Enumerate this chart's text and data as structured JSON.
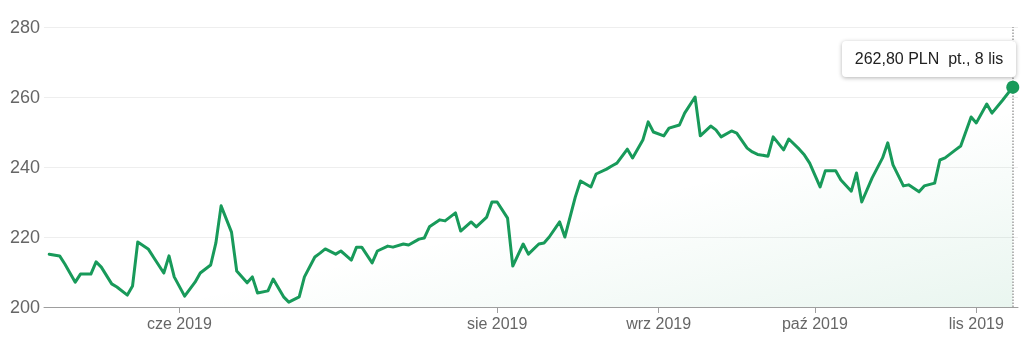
{
  "chart_data": {
    "type": "area",
    "x": [
      "2019-05-07",
      "2019-05-09",
      "2019-05-10",
      "2019-05-12",
      "2019-05-13",
      "2019-05-15",
      "2019-05-16",
      "2019-05-17",
      "2019-05-19",
      "2019-05-20",
      "2019-05-22",
      "2019-05-23",
      "2019-05-24",
      "2019-05-26",
      "2019-05-27",
      "2019-05-29",
      "2019-05-30",
      "2019-05-31",
      "2019-06-02",
      "2019-06-04",
      "2019-06-05",
      "2019-06-07",
      "2019-06-08",
      "2019-06-09",
      "2019-06-11",
      "2019-06-12",
      "2019-06-14",
      "2019-06-15",
      "2019-06-16",
      "2019-06-18",
      "2019-06-19",
      "2019-06-21",
      "2019-06-22",
      "2019-06-24",
      "2019-06-25",
      "2019-06-27",
      "2019-06-28",
      "2019-06-29",
      "2019-07-01",
      "2019-07-02",
      "2019-07-04",
      "2019-07-05",
      "2019-07-06",
      "2019-07-08",
      "2019-07-09",
      "2019-07-11",
      "2019-07-12",
      "2019-07-14",
      "2019-07-15",
      "2019-07-17",
      "2019-07-18",
      "2019-07-19",
      "2019-07-21",
      "2019-07-22",
      "2019-07-24",
      "2019-07-25",
      "2019-07-27",
      "2019-07-28",
      "2019-07-30",
      "2019-07-31",
      "2019-08-01",
      "2019-08-03",
      "2019-08-04",
      "2019-08-06",
      "2019-08-07",
      "2019-08-09",
      "2019-08-10",
      "2019-08-11",
      "2019-08-13",
      "2019-08-14",
      "2019-08-16",
      "2019-08-17",
      "2019-08-19",
      "2019-08-20",
      "2019-08-22",
      "2019-08-23",
      "2019-08-24",
      "2019-08-26",
      "2019-08-27",
      "2019-08-29",
      "2019-08-30",
      "2019-08-31",
      "2019-09-02",
      "2019-09-03",
      "2019-09-05",
      "2019-09-06",
      "2019-09-08",
      "2019-09-09",
      "2019-09-11",
      "2019-09-12",
      "2019-09-13",
      "2019-09-15",
      "2019-09-16",
      "2019-09-18",
      "2019-09-19",
      "2019-09-20",
      "2019-09-22",
      "2019-09-23",
      "2019-09-25",
      "2019-09-26",
      "2019-09-28",
      "2019-09-29",
      "2019-09-30",
      "2019-10-02",
      "2019-10-03",
      "2019-10-05",
      "2019-10-06",
      "2019-10-08",
      "2019-10-09",
      "2019-10-10",
      "2019-10-12",
      "2019-10-14",
      "2019-10-15",
      "2019-10-16",
      "2019-10-18",
      "2019-10-19",
      "2019-10-21",
      "2019-10-22",
      "2019-10-24",
      "2019-10-25",
      "2019-10-26",
      "2019-10-28",
      "2019-10-29",
      "2019-10-31",
      "2019-11-01",
      "2019-11-03",
      "2019-11-04",
      "2019-11-06",
      "2019-11-08"
    ],
    "series": [
      {
        "color": "#189a5a",
        "values": [
          215.1,
          214.6,
          212.3,
          207.1,
          209.4,
          209.4,
          212.9,
          211.4,
          206.6,
          205.7,
          203.4,
          206,
          218.6,
          216.6,
          214.3,
          209.7,
          214.6,
          208.6,
          203.1,
          207.1,
          209.7,
          212,
          218.3,
          228.9,
          221.4,
          210.3,
          206.9,
          208.6,
          204,
          204.6,
          208,
          202.9,
          201.4,
          202.9,
          208.6,
          214.3,
          215.4,
          216.6,
          215.1,
          216,
          213.4,
          217.1,
          217.1,
          212.6,
          216,
          217.4,
          217.1,
          218,
          217.7,
          219.4,
          219.7,
          222.9,
          224.9,
          224.6,
          226.9,
          221.7,
          224.3,
          222.9,
          225.7,
          230,
          230,
          225.4,
          211.7,
          218,
          215.1,
          218,
          218.3,
          220,
          224.3,
          220,
          231.4,
          236,
          234.3,
          238,
          239.4,
          240.3,
          241.1,
          245.1,
          242.6,
          247.8,
          252.9,
          250,
          248.9,
          251.1,
          252,
          255.4,
          260,
          248.9,
          251.7,
          250.6,
          248.6,
          250.3,
          249.7,
          245.4,
          244.3,
          243.6,
          243.1,
          248.6,
          244.9,
          248,
          245.1,
          243.4,
          241.1,
          234.3,
          238.9,
          238.9,
          236.3,
          233.1,
          238.3,
          230,
          236.9,
          242.6,
          246.9,
          240.6,
          234.6,
          234.9,
          232.9,
          234.6,
          235.4,
          242,
          242.6,
          244.9,
          246,
          254.3,
          252.6,
          258,
          255.4,
          259,
          262.8
        ]
      }
    ],
    "xlim": [
      "2019-05-06",
      "2019-11-09"
    ],
    "xticks": [
      {
        "value": "2019-06-01",
        "label": "cze 2019"
      },
      {
        "value": "2019-08-01",
        "label": "sie 2019"
      },
      {
        "value": "2019-09-01",
        "label": "wrz 2019"
      },
      {
        "value": "2019-10-01",
        "label": "paź 2019"
      },
      {
        "value": "2019-11-01",
        "label": "lis 2019"
      }
    ],
    "ylim": [
      200,
      280
    ],
    "yticks": [
      200,
      220,
      240,
      260,
      280
    ],
    "grid": "y",
    "marker": "none",
    "line_style": "solid",
    "ref_lines": [
      {
        "axis": "x",
        "value": "2019-11-08",
        "color": "#9e9e9e",
        "line_style": "dotted"
      }
    ],
    "annotations": [
      {
        "text": "262,80 PLN  pt., 8 lis",
        "x": "2019-11-08",
        "y": 262.8
      }
    ]
  }
}
